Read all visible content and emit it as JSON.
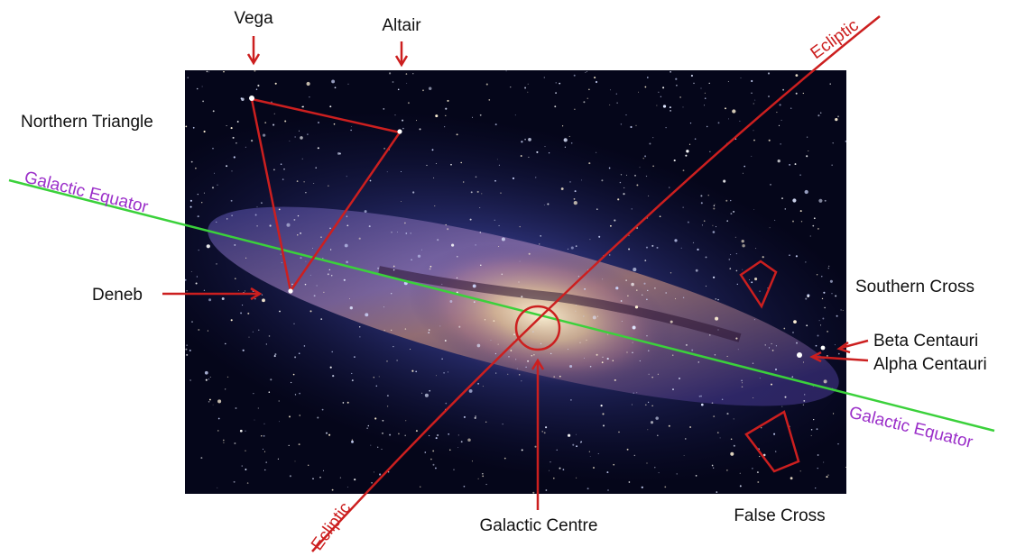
{
  "labels": {
    "vega": "Vega",
    "altair": "Altair",
    "northern_triangle": "Northern Triangle",
    "deneb": "Deneb",
    "galactic_equator_left": "Galactic Equator",
    "galactic_equator_right": "Galactic Equator",
    "ecliptic_top": "Ecliptic",
    "ecliptic_bottom": "Ecliptic",
    "southern_cross": "Southern Cross",
    "beta_centauri": "Beta Centauri",
    "alpha_centauri": "Alpha Centauri",
    "galactic_centre": "Galactic Centre",
    "false_cross": "False Cross"
  },
  "colors": {
    "annotation_red": "#cc1f1f",
    "equator_green": "#3bd13b",
    "equator_label_purple": "#9b2fc9",
    "sky_dark": "#05061a"
  }
}
